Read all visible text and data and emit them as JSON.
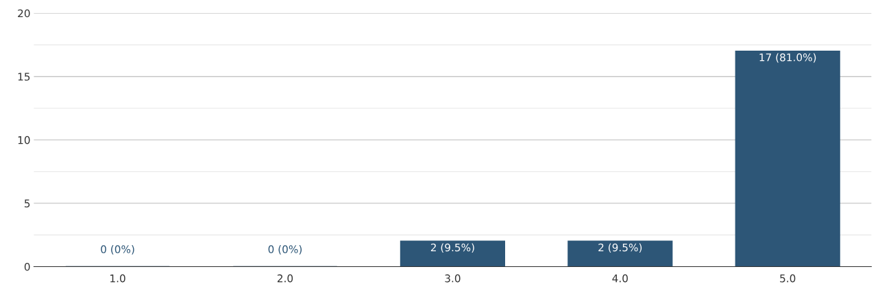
{
  "chart_data": {
    "type": "bar",
    "categories": [
      "1.0",
      "2.0",
      "3.0",
      "4.0",
      "5.0"
    ],
    "values": [
      0,
      0,
      2,
      2,
      17
    ],
    "value_labels": [
      "0 (0%)",
      "0 (0%)",
      "2 (9.5%)",
      "2 (9.5%)",
      "17 (81.0%)"
    ],
    "color": "#2d5677",
    "ylim": [
      0,
      20
    ],
    "yticks": [
      0,
      {
        "value": 2.5,
        "label": null
      },
      5,
      {
        "value": 7.5,
        "label": null
      },
      10,
      {
        "value": 12.5,
        "label": null
      },
      15,
      {
        "value": 17.5,
        "label": null
      },
      20
    ],
    "grid": "y"
  }
}
